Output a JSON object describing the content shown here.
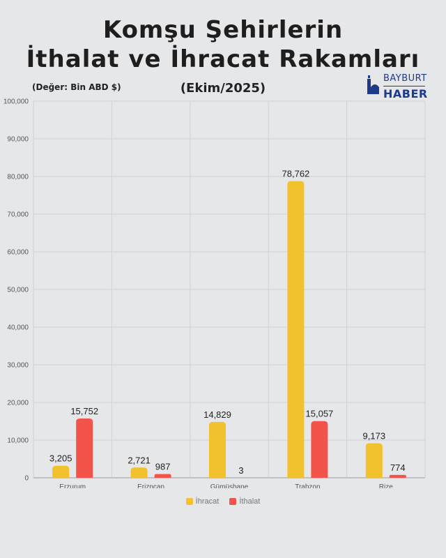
{
  "header": {
    "title_line1": "Komşu Şehirlerin",
    "title_line2": "İthalat ve İhracat Rakamları",
    "unit_note": "(Değer: Bin ABD $)",
    "period": "(Ekim/2025)"
  },
  "logo": {
    "line1": "BAYBURT",
    "line2": "HABER",
    "color": "#1e3a8a"
  },
  "chart_data": {
    "type": "bar",
    "categories": [
      "Erzurum",
      "Erizncan",
      "Gümüşhane",
      "Trabzon",
      "Rize"
    ],
    "series": [
      {
        "name": "İhracat",
        "color": "#f2c12e",
        "values": [
          3205,
          2721,
          14829,
          78762,
          9173
        ],
        "labels": [
          "3,205",
          "2,721",
          "14,829",
          "78,762",
          "9,173"
        ]
      },
      {
        "name": "İthalat",
        "color": "#f2534a",
        "values": [
          15752,
          987,
          3,
          15057,
          774
        ],
        "labels": [
          "15,752",
          "987",
          "3",
          "15,057",
          "774"
        ]
      }
    ],
    "ylim": [
      0,
      100000
    ],
    "yticks": [
      0,
      10000,
      20000,
      30000,
      40000,
      50000,
      60000,
      70000,
      80000,
      90000,
      100000
    ],
    "ytick_labels": [
      "0",
      "10,000",
      "20,000",
      "30,000",
      "40,000",
      "50,000",
      "60,000",
      "70,000",
      "80,000",
      "90,000",
      "100,000"
    ],
    "grid": true,
    "legend_position": "bottom"
  }
}
